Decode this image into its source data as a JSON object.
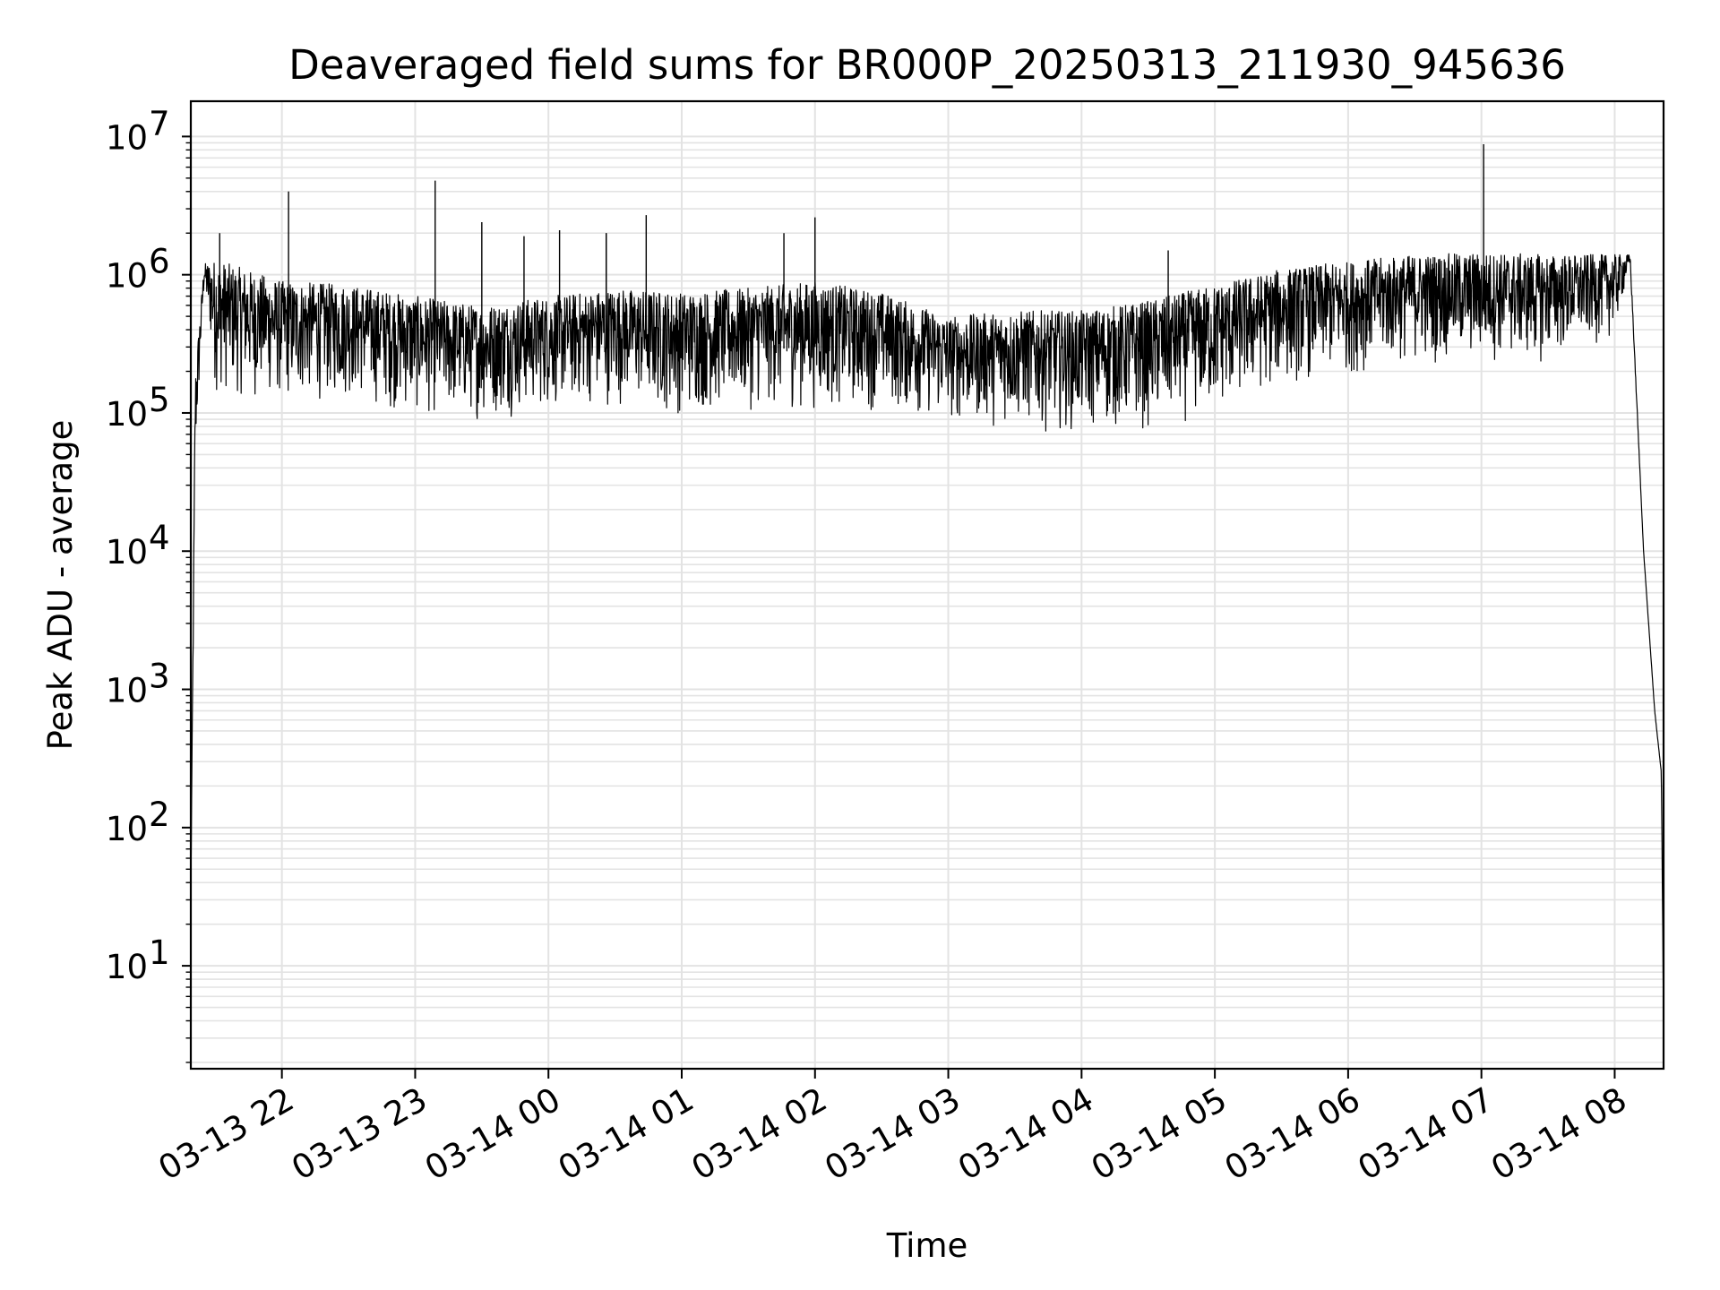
{
  "chart_data": {
    "type": "line",
    "title": "Deaveraged field sums for BR000P_20250313_211930_945636",
    "xlabel": "Time",
    "ylabel": "Peak ADU - average",
    "y_scale": "log",
    "ylim": [
      1.8,
      18000000
    ],
    "xlim": [
      "03-13 21:19",
      "03-14 08:22"
    ],
    "grid": "major and minor, light gray",
    "x_ticks": [
      "03-13 22",
      "03-13 23",
      "03-14 00",
      "03-14 01",
      "03-14 02",
      "03-14 03",
      "03-14 04",
      "03-14 05",
      "03-14 06",
      "03-14 07",
      "03-14 08"
    ],
    "y_ticks": [
      {
        "value": 10,
        "base": "10",
        "exp": "1"
      },
      {
        "value": 100,
        "base": "10",
        "exp": "2"
      },
      {
        "value": 1000,
        "base": "10",
        "exp": "3"
      },
      {
        "value": 10000,
        "base": "10",
        "exp": "4"
      },
      {
        "value": 100000,
        "base": "10",
        "exp": "5"
      },
      {
        "value": 1000000,
        "base": "10",
        "exp": "6"
      },
      {
        "value": 10000000,
        "base": "10",
        "exp": "7"
      }
    ],
    "series": [
      {
        "color": "#000000",
        "envelope": [
          {
            "t": "03-13 21:19",
            "low": 35,
            "high": 35
          },
          {
            "t": "03-13 21:21",
            "low": 30000,
            "high": 200000
          },
          {
            "t": "03-13 21:25",
            "low": 800000,
            "high": 1200000
          },
          {
            "t": "03-13 21:30",
            "low": 130000,
            "high": 1300000
          },
          {
            "t": "03-13 22:00",
            "low": 110000,
            "high": 900000
          },
          {
            "t": "03-13 22:30",
            "low": 120000,
            "high": 850000
          },
          {
            "t": "03-13 23:00",
            "low": 90000,
            "high": 700000
          },
          {
            "t": "03-13 23:30",
            "low": 85000,
            "high": 600000
          },
          {
            "t": "03-14 00:00",
            "low": 100000,
            "high": 700000
          },
          {
            "t": "03-14 00:30",
            "low": 110000,
            "high": 800000
          },
          {
            "t": "03-14 01:00",
            "low": 90000,
            "high": 750000
          },
          {
            "t": "03-14 01:30",
            "low": 100000,
            "high": 800000
          },
          {
            "t": "03-14 02:00",
            "low": 100000,
            "high": 900000
          },
          {
            "t": "03-14 02:30",
            "low": 100000,
            "high": 750000
          },
          {
            "t": "03-14 03:00",
            "low": 80000,
            "high": 500000
          },
          {
            "t": "03-14 03:30",
            "low": 75000,
            "high": 550000
          },
          {
            "t": "03-14 04:00",
            "low": 70000,
            "high": 550000
          },
          {
            "t": "03-14 04:30",
            "low": 70000,
            "high": 650000
          },
          {
            "t": "03-14 05:00",
            "low": 90000,
            "high": 850000
          },
          {
            "t": "03-14 05:30",
            "low": 150000,
            "high": 1100000
          },
          {
            "t": "03-14 06:00",
            "low": 180000,
            "high": 1250000
          },
          {
            "t": "03-14 06:30",
            "low": 220000,
            "high": 1400000
          },
          {
            "t": "03-14 07:00",
            "low": 220000,
            "high": 1450000
          },
          {
            "t": "03-14 07:30",
            "low": 220000,
            "high": 1400000
          },
          {
            "t": "03-14 08:00",
            "low": 350000,
            "high": 1400000
          },
          {
            "t": "03-14 08:07",
            "low": 1100000,
            "high": 1400000
          },
          {
            "t": "03-14 08:13",
            "low": 10000,
            "high": 10000
          },
          {
            "t": "03-14 08:18",
            "low": 700,
            "high": 700
          },
          {
            "t": "03-14 08:21",
            "low": 250,
            "high": 250
          },
          {
            "t": "03-14 08:22",
            "low": 4,
            "high": 4
          }
        ],
        "spikes": [
          {
            "t": "03-13 21:32",
            "y": 2000000
          },
          {
            "t": "03-13 22:03",
            "y": 4000000
          },
          {
            "t": "03-13 23:09",
            "y": 4800000
          },
          {
            "t": "03-13 23:30",
            "y": 2400000
          },
          {
            "t": "03-13 23:49",
            "y": 1900000
          },
          {
            "t": "03-14 00:05",
            "y": 2100000
          },
          {
            "t": "03-14 00:26",
            "y": 2000000
          },
          {
            "t": "03-14 00:26",
            "y": 2000000
          },
          {
            "t": "03-14 00:44",
            "y": 2700000
          },
          {
            "t": "03-14 01:46",
            "y": 2000000
          },
          {
            "t": "03-14 02:00",
            "y": 2600000
          },
          {
            "t": "03-14 04:39",
            "y": 1500000
          },
          {
            "t": "03-14 07:01",
            "y": 8800000
          }
        ]
      }
    ]
  }
}
